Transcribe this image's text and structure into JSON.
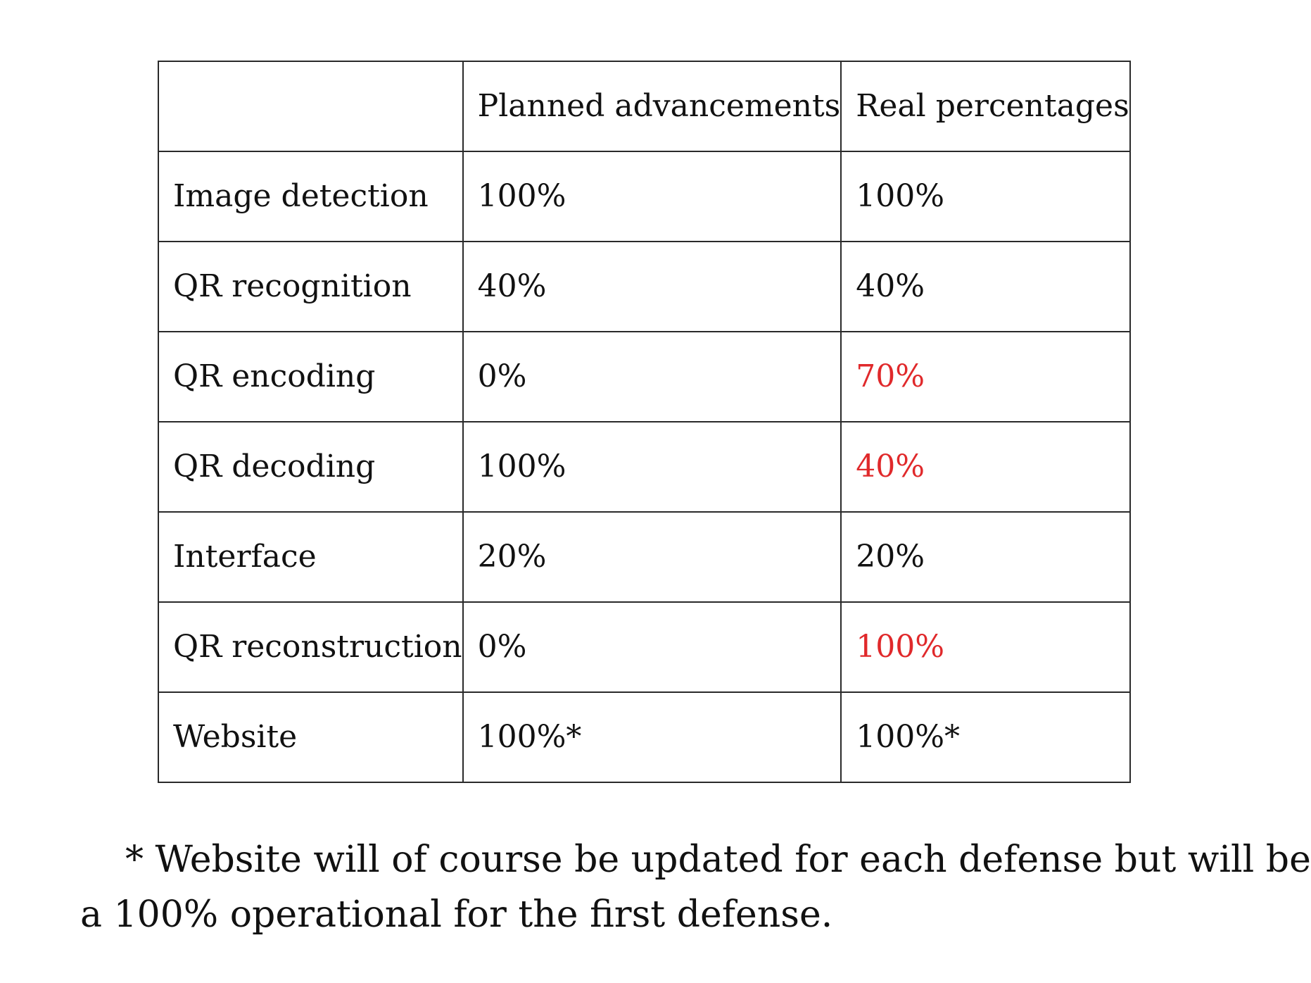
{
  "table": {
    "header": {
      "task": "",
      "planned": "Planned advancements",
      "real": "Real percentages"
    },
    "rows": [
      {
        "task": "Image detection",
        "planned": "100%",
        "real": "100%",
        "real_highlight": false
      },
      {
        "task": "QR recognition",
        "planned": "40%",
        "real": "40%",
        "real_highlight": false
      },
      {
        "task": "QR encoding",
        "planned": "0%",
        "real": "70%",
        "real_highlight": true
      },
      {
        "task": "QR decoding",
        "planned": "100%",
        "real": "40%",
        "real_highlight": true
      },
      {
        "task": "Interface",
        "planned": "20%",
        "real": "20%",
        "real_highlight": false
      },
      {
        "task": "QR reconstruction",
        "planned": "0%",
        "real": "100%",
        "real_highlight": true
      },
      {
        "task": "Website",
        "planned": "100%*",
        "real": "100%*",
        "real_highlight": false
      }
    ]
  },
  "footnote": {
    "line1": "* Website will of course be updated for each defense but will be",
    "line2": "a 100% operational for the first defense."
  },
  "colors": {
    "text": "#111111",
    "highlight": "#e0292b",
    "border": "#2a2a2a"
  }
}
